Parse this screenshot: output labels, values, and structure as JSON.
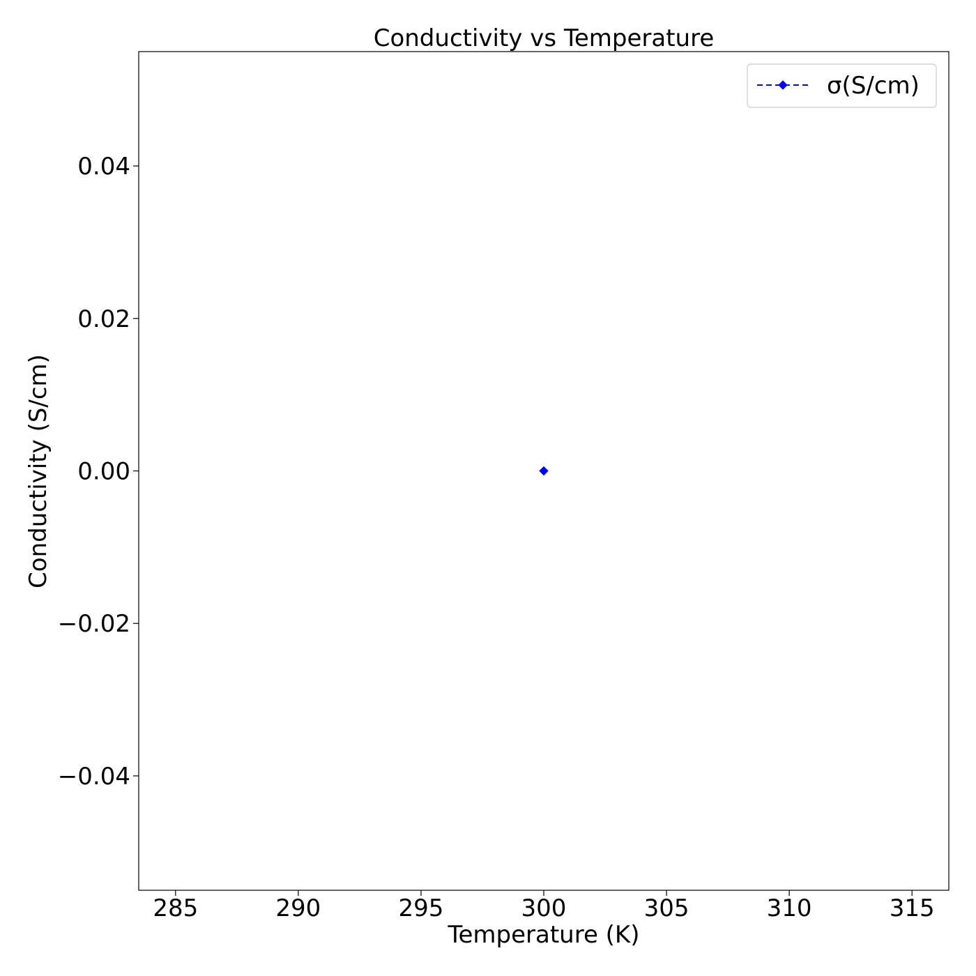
{
  "chart_data": {
    "type": "line",
    "title": "Conductivity vs Temperature",
    "xlabel": "Temperature (K)",
    "ylabel": "Conductivity (S/cm)",
    "xlim": [
      283.5,
      316.5
    ],
    "ylim": [
      -0.055,
      0.055
    ],
    "xticks": [
      285,
      290,
      295,
      300,
      305,
      310,
      315
    ],
    "xtick_labels": [
      "285",
      "290",
      "295",
      "300",
      "305",
      "310",
      "315"
    ],
    "yticks": [
      -0.04,
      -0.02,
      0.0,
      0.02,
      0.04
    ],
    "ytick_labels": [
      "−0.04",
      "−0.02",
      "0.00",
      "0.02",
      "0.04"
    ],
    "grid": false,
    "legend_position": "top-right",
    "series": [
      {
        "name": "σ(S/cm)",
        "color": "#0000ff",
        "line_style": "dashed",
        "marker": "diamond",
        "x": [
          300
        ],
        "y": [
          0.0
        ]
      }
    ]
  }
}
